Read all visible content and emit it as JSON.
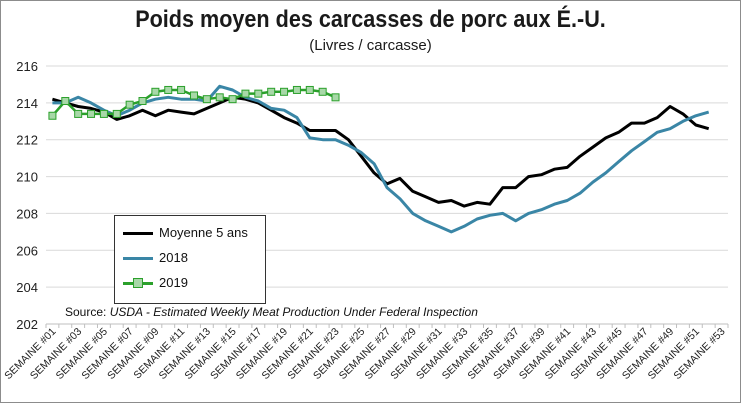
{
  "title": "Poids moyen des carcasses de porc aux É.-U.",
  "subtitle": "(Livres / carcasse)",
  "source": {
    "prefix": "Source: ",
    "text": "USDA - Estimated Weekly Meat Production Under Federal Inspection"
  },
  "legend": {
    "entries": [
      {
        "label": "Moyenne 5 ans",
        "color": "#000000"
      },
      {
        "label": "2018",
        "color": "#3a86a6"
      },
      {
        "label": "2019",
        "color": "#2ba02b",
        "marker_fill": "#a8d8a8"
      }
    ]
  },
  "chart_data": {
    "type": "line",
    "title": "Poids moyen des carcasses de porc aux É.-U.",
    "subtitle": "(Livres / carcasse)",
    "xlabel": "",
    "ylabel": "",
    "ylim": [
      202,
      216
    ],
    "yticks": [
      202,
      204,
      206,
      208,
      210,
      212,
      214,
      216
    ],
    "grid": true,
    "legend_position": "bottom-left",
    "x_tick_labels": [
      "SEMAINE #01",
      "SEMAINE #03",
      "SEMAINE #05",
      "SEMAINE #07",
      "SEMAINE #09",
      "SEMAINE #11",
      "SEMAINE #13",
      "SEMAINE #15",
      "SEMAINE #17",
      "SEMAINE #19",
      "SEMAINE #21",
      "SEMAINE #23",
      "SEMAINE #25",
      "SEMAINE #27",
      "SEMAINE #29",
      "SEMAINE #31",
      "SEMAINE #33",
      "SEMAINE #35",
      "SEMAINE #37",
      "SEMAINE #39",
      "SEMAINE #41",
      "SEMAINE #43",
      "SEMAINE #45",
      "SEMAINE #47",
      "SEMAINE #49",
      "SEMAINE #51",
      "SEMAINE #53"
    ],
    "weeks": 53,
    "series": [
      {
        "name": "Moyenne 5 ans",
        "color": "#000000",
        "values": [
          214.2,
          214.0,
          213.8,
          213.7,
          213.5,
          213.1,
          213.3,
          213.6,
          213.3,
          213.6,
          213.5,
          213.4,
          213.7,
          214.0,
          214.3,
          214.2,
          214.0,
          213.6,
          213.2,
          212.9,
          212.5,
          212.5,
          212.5,
          212.0,
          211.1,
          210.2,
          209.6,
          209.9,
          209.2,
          208.9,
          208.6,
          208.7,
          208.4,
          208.6,
          208.5,
          209.4,
          209.4,
          210.0,
          210.1,
          210.4,
          210.5,
          211.1,
          211.6,
          212.1,
          212.4,
          212.9,
          212.9,
          213.2,
          213.8,
          213.4,
          212.8,
          212.6
        ]
      },
      {
        "name": "2018",
        "color": "#3a86a6",
        "values": [
          214.0,
          214.0,
          214.3,
          214.0,
          213.6,
          213.3,
          213.6,
          214.0,
          214.2,
          214.3,
          214.2,
          214.2,
          214.1,
          214.9,
          214.7,
          214.3,
          214.1,
          213.7,
          213.6,
          213.2,
          212.1,
          212.0,
          212.0,
          211.7,
          211.3,
          210.7,
          209.4,
          208.8,
          208.0,
          207.6,
          207.3,
          207.0,
          207.3,
          207.7,
          207.9,
          208.0,
          207.6,
          208.0,
          208.2,
          208.5,
          208.7,
          209.1,
          209.7,
          210.2,
          210.8,
          211.4,
          211.9,
          212.4,
          212.6,
          213.0,
          213.3,
          213.5
        ]
      },
      {
        "name": "2019",
        "color": "#2ba02b",
        "marker_fill": "#a8d8a8",
        "values": [
          213.3,
          214.1,
          213.4,
          213.4,
          213.4,
          213.4,
          213.9,
          214.1,
          214.6,
          214.7,
          214.7,
          214.4,
          214.2,
          214.3,
          214.2,
          214.5,
          214.5,
          214.6,
          214.6,
          214.7,
          214.7,
          214.6,
          214.3
        ]
      }
    ]
  }
}
